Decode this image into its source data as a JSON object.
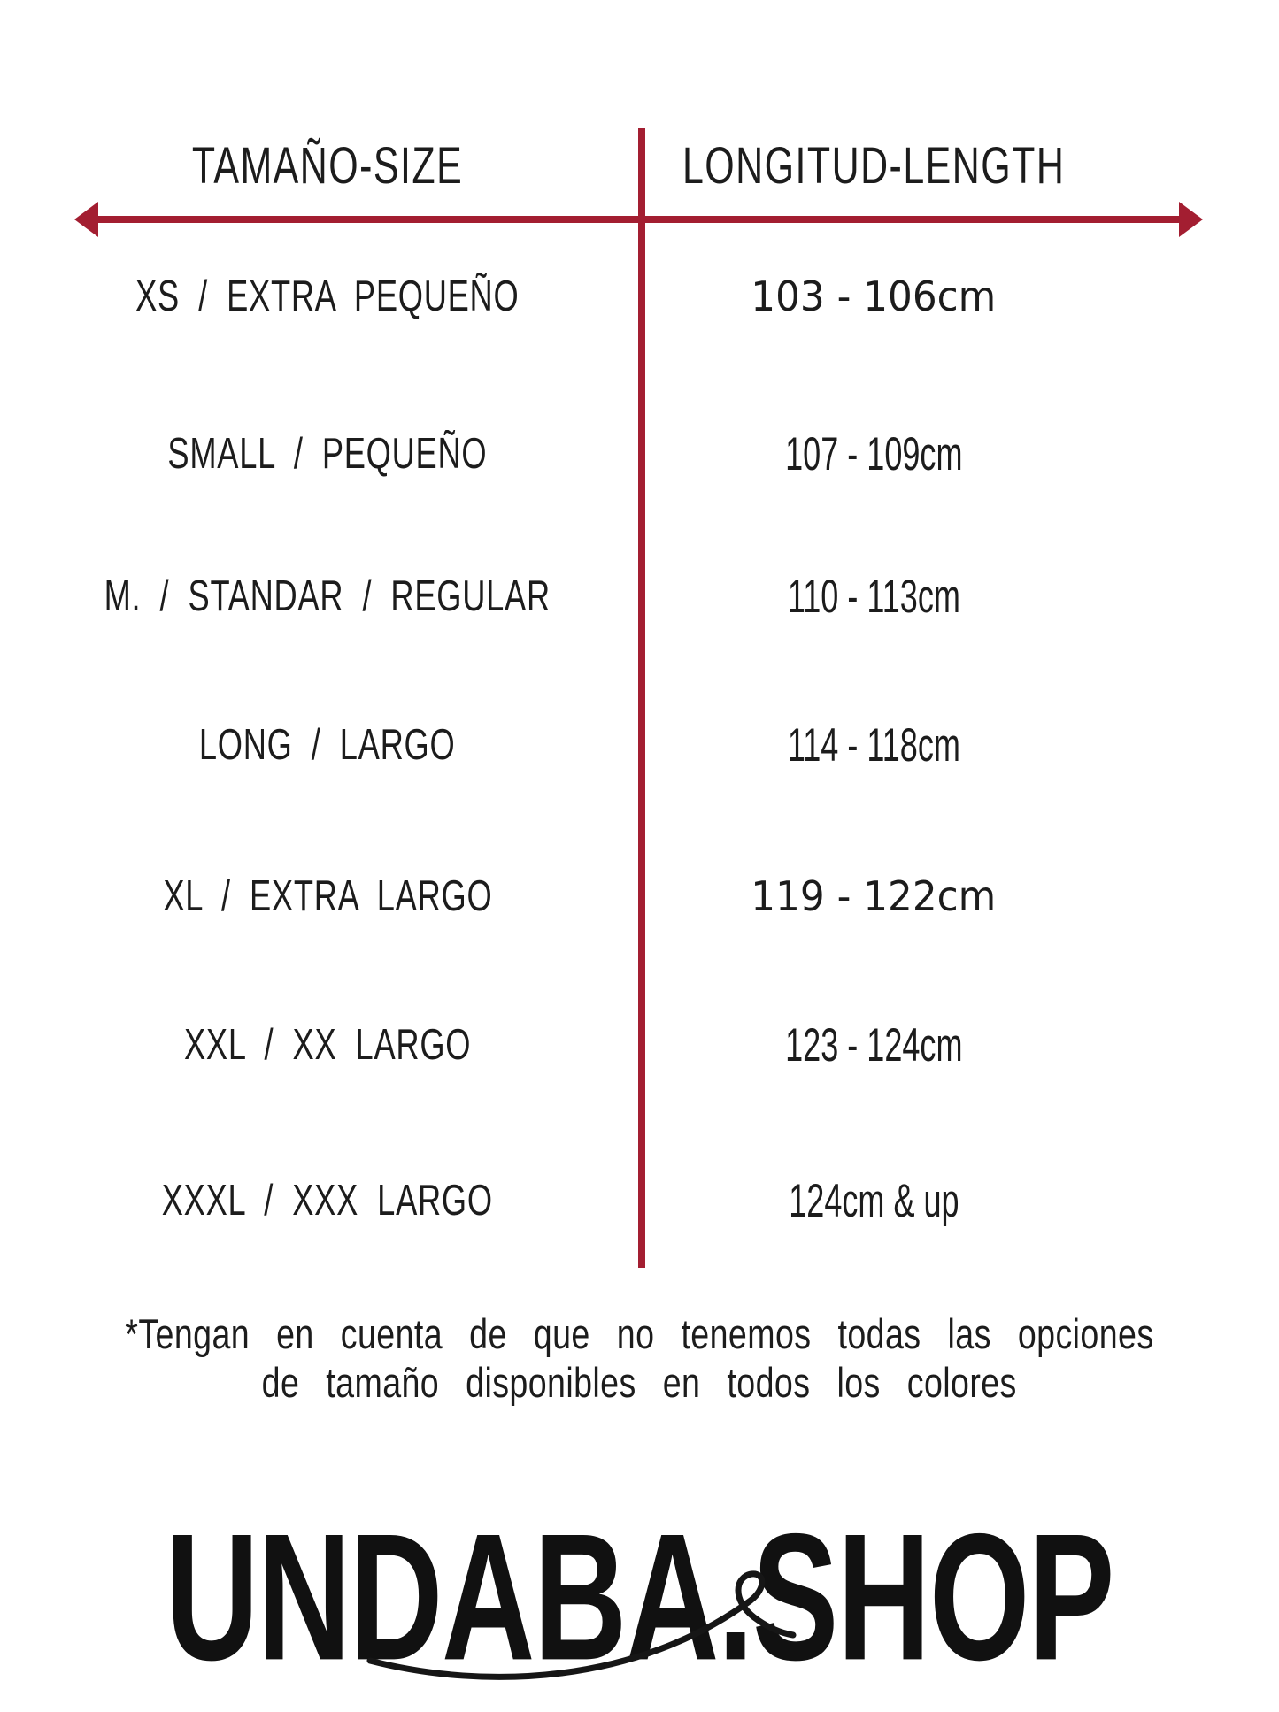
{
  "colors": {
    "accent_red": "#A31E31",
    "text": "#1c1c1c",
    "background": "#ffffff"
  },
  "table": {
    "headers": {
      "size": "TAMAÑO-SIZE",
      "length": "LONGITUD-LENGTH"
    },
    "rows": [
      {
        "size": "XS / EXTRA PEQUEÑO",
        "length": "103 - 106cm"
      },
      {
        "size": "SMALL / PEQUEÑO",
        "length": "107 - 109cm"
      },
      {
        "size": "M. / STANDAR / REGULAR",
        "length": "110 - 113cm"
      },
      {
        "size": "LONG / LARGO",
        "length": "114 - 118cm"
      },
      {
        "size": "XL / EXTRA LARGO",
        "length": "119 - 122cm"
      },
      {
        "size": "XXL / XX LARGO",
        "length": "123 - 124cm"
      },
      {
        "size": "XXXL / XXX LARGO",
        "length": "124cm & up"
      }
    ]
  },
  "footnote": {
    "line1": "*Tengan en cuenta de que no tenemos todas las opciones",
    "line2": "de tamaño disponibles en todos los colores"
  },
  "brand": {
    "logo_text": "UNDABA.SHOP"
  }
}
